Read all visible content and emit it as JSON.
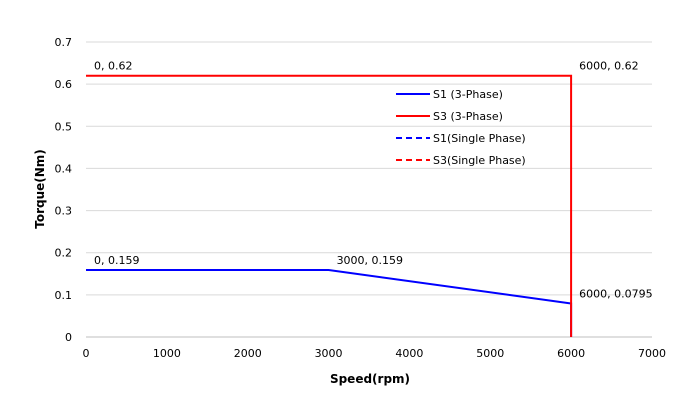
{
  "chart_data": {
    "type": "line",
    "title": "",
    "xlabel": "Speed(rpm)",
    "ylabel": "Torque(Nm)",
    "xlim": [
      0,
      7000
    ],
    "ylim": [
      0,
      0.7
    ],
    "xticks": [
      0,
      1000,
      2000,
      3000,
      4000,
      5000,
      6000,
      7000
    ],
    "yticks": [
      0,
      0.1,
      0.2,
      0.3,
      0.4,
      0.5,
      0.6,
      0.7
    ],
    "xtick_labels": [
      "0",
      "1000",
      "2000",
      "3000",
      "4000",
      "5000",
      "6000",
      "7000"
    ],
    "ytick_labels": [
      "0",
      "0.1",
      "0.2",
      "0.3",
      "0.4",
      "0.5",
      "0.6",
      "0.7"
    ],
    "grid": "horizontal",
    "legend_position": "center-right",
    "series": [
      {
        "name": "S1 (3-Phase)",
        "color": "#0000ff",
        "dash": "solid",
        "points": [
          [
            0,
            0.159
          ],
          [
            3000,
            0.159
          ],
          [
            6000,
            0.0795
          ],
          [
            6000,
            0
          ]
        ]
      },
      {
        "name": "S3 (3-Phase)",
        "color": "#ff0000",
        "dash": "solid",
        "points": [
          [
            0,
            0.62
          ],
          [
            6000,
            0.62
          ],
          [
            6000,
            0
          ]
        ]
      },
      {
        "name": "S1(Single Phase)",
        "color": "#0000ff",
        "dash": "dashed",
        "points": []
      },
      {
        "name": "S3(Single Phase)",
        "color": "#ff0000",
        "dash": "dashed",
        "points": []
      }
    ],
    "annotations": [
      {
        "text": "0, 0.62",
        "x": 0,
        "y": 0.62
      },
      {
        "text": "6000, 0.62",
        "x": 6000,
        "y": 0.62
      },
      {
        "text": "0, 0.159",
        "x": 0,
        "y": 0.159
      },
      {
        "text": "3000, 0.159",
        "x": 3000,
        "y": 0.159
      },
      {
        "text": "6000, 0.0795",
        "x": 6000,
        "y": 0.0795
      }
    ]
  }
}
